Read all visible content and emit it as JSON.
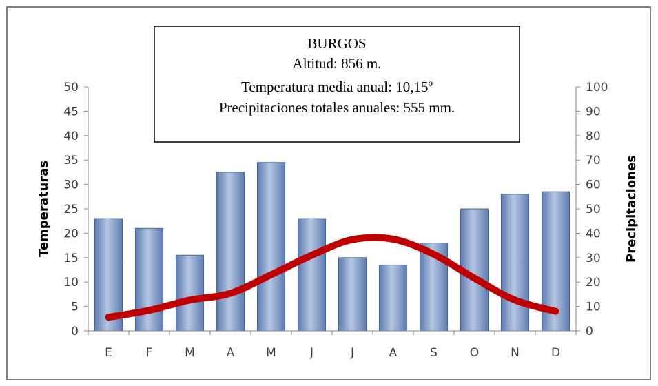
{
  "chart_data": {
    "type": "bar",
    "title_lines": [
      "BURGOS",
      "Altitud: 856 m.",
      "Temperatura media anual: 10,15º",
      "Precipitaciones totales anuales: 555 mm."
    ],
    "categories": [
      "E",
      "F",
      "M",
      "A",
      "M",
      "J",
      "J",
      "A",
      "S",
      "O",
      "N",
      "D"
    ],
    "ylabel": "Temperaturas",
    "y2label": "Precipitaciones",
    "ylim": [
      0,
      50
    ],
    "y2lim": [
      0,
      100
    ],
    "yticks": [
      "0",
      "5",
      "10",
      "15",
      "20",
      "25",
      "30",
      "35",
      "40",
      "45",
      "50"
    ],
    "y2ticks": [
      "0",
      "10",
      "20",
      "30",
      "40",
      "50",
      "60",
      "70",
      "80",
      "90",
      "100"
    ],
    "series": [
      {
        "type": "bar",
        "axis": "y2",
        "values": [
          46,
          42,
          31,
          65,
          69,
          46,
          30,
          27,
          36,
          50,
          56,
          57
        ],
        "color": "#7f9bc8"
      },
      {
        "type": "line",
        "axis": "y",
        "values": [
          2.8,
          4.2,
          6.3,
          7.7,
          11.5,
          15.5,
          18.7,
          18.8,
          15.7,
          10.8,
          6.3,
          4.0
        ],
        "color": "#c00000"
      }
    ],
    "legend": "none",
    "grid": false
  }
}
